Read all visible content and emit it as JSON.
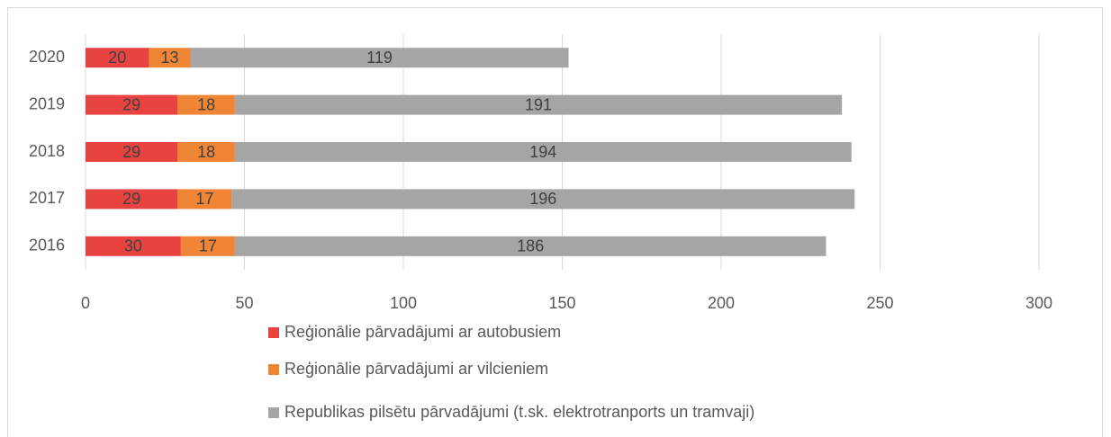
{
  "chart_data": {
    "type": "bar",
    "orientation": "horizontal",
    "stacked": true,
    "categories": [
      "2020",
      "2019",
      "2018",
      "2017",
      "2016"
    ],
    "series": [
      {
        "name": "Reģionālie pārvadājumi ar autobusiem",
        "color": "#e84341",
        "values": [
          20,
          29,
          29,
          29,
          30
        ]
      },
      {
        "name": "Reģionālie pārvadājumi ar vilcieniem",
        "color": "#ef8535",
        "values": [
          13,
          18,
          18,
          17,
          17
        ]
      },
      {
        "name": "Republikas pilsētu pārvadājumi (t.sk. elektrotranports un tramvaji)",
        "color": "#a5a5a5",
        "values": [
          119,
          191,
          194,
          196,
          186
        ]
      }
    ],
    "xlim": [
      0,
      300
    ],
    "xticks": [
      0,
      50,
      100,
      150,
      200,
      250,
      300
    ],
    "grid": true,
    "legend": "bottom"
  }
}
